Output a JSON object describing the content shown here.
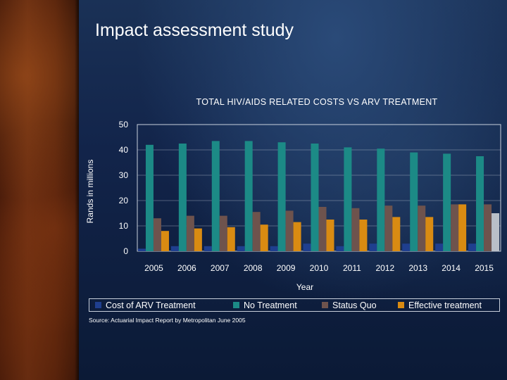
{
  "slide": {
    "title": "Impact assessment study"
  },
  "chart_data": {
    "type": "bar",
    "title": "TOTAL HIV/AIDS RELATED COSTS VS ARV TREATMENT",
    "xlabel": "Year",
    "ylabel": "Rands in millions",
    "ylim": [
      0,
      50
    ],
    "yticks": [
      "0",
      "10",
      "20",
      "30",
      "40",
      "50"
    ],
    "categories": [
      "2005",
      "2006",
      "2007",
      "2008",
      "2009",
      "2010",
      "2011",
      "2012",
      "2013",
      "2014",
      "2015"
    ],
    "series": [
      {
        "name": "Cost of ARV Treatment",
        "color": "#1f3f8f",
        "values": [
          1,
          2,
          2,
          2,
          2,
          3,
          2,
          3,
          3,
          3,
          3
        ]
      },
      {
        "name": "No Treatment",
        "color": "#1c8a86",
        "values": [
          42,
          42.5,
          43.5,
          43.5,
          43,
          42.5,
          41,
          40.5,
          39,
          38.5,
          37.5
        ]
      },
      {
        "name": "Status Quo",
        "color": "#6e534d",
        "values": [
          13,
          14,
          14,
          15.5,
          16,
          17.5,
          17,
          18,
          18,
          18.5,
          18.5
        ]
      },
      {
        "name": "Effective treatment",
        "color": "#d98b12",
        "values": [
          8,
          9,
          9.5,
          10.5,
          11.5,
          12.5,
          12.5,
          13.5,
          13.5,
          18.5,
          15
        ]
      }
    ],
    "legend_position": "bottom",
    "source": "Source: Actuarial Impact Report by Metropolitan June 2005"
  }
}
